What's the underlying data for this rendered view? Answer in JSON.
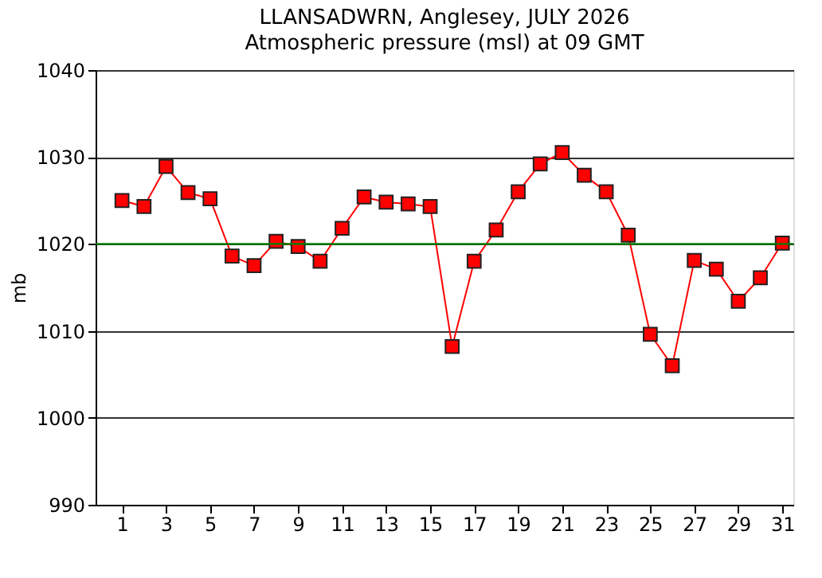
{
  "chart_data": {
    "type": "line",
    "title": "LLANSADWRN, Anglesey,  JULY 2026",
    "subtitle": "Atmospheric pressure  (msl) at 09 GMT",
    "ylabel": "mb",
    "x": [
      1,
      2,
      3,
      4,
      5,
      6,
      7,
      8,
      9,
      10,
      11,
      12,
      13,
      14,
      15,
      16,
      17,
      18,
      19,
      20,
      21,
      22,
      23,
      24,
      25,
      26,
      27,
      28,
      29,
      30,
      31
    ],
    "series": [
      {
        "color": "#ff0000",
        "values": [
          1025,
          1024.3,
          1028.9,
          1025.9,
          1025.2,
          1018.6,
          1017.5,
          1020.3,
          1019.7,
          1018,
          1021.8,
          1025.4,
          1024.8,
          1024.6,
          1024.3,
          1008.2,
          1018,
          1021.6,
          1026,
          1029.2,
          1030.5,
          1027.9,
          1026,
          1021,
          1009.6,
          1006,
          1018.1,
          1017.1,
          1013.4,
          1016.1,
          1020.1
        ]
      }
    ],
    "xlim": [
      -0.2,
      31.5
    ],
    "xticks": [
      1,
      3,
      5,
      7,
      9,
      11,
      13,
      15,
      17,
      19,
      21,
      23,
      25,
      27,
      29,
      31
    ],
    "ylim": [
      990,
      1040
    ],
    "yticks": [
      990,
      1000,
      1010,
      1020,
      1030,
      1040
    ],
    "grid": "y",
    "ref_lines": [
      {
        "axis": "y",
        "value": 1020,
        "color": "#008000"
      }
    ],
    "marker": "square",
    "line_style": "solid"
  }
}
